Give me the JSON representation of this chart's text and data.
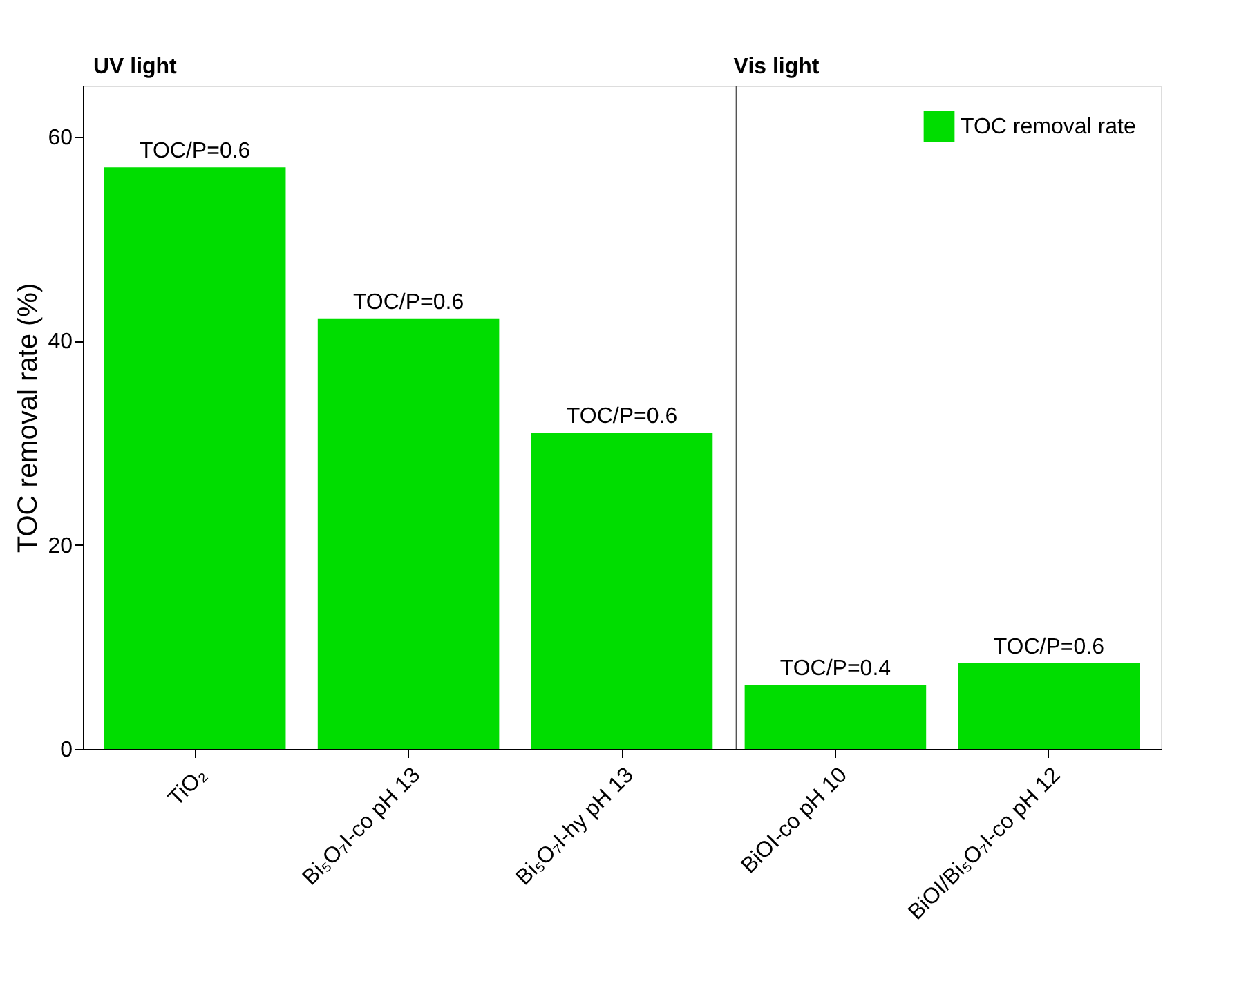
{
  "chart_data": {
    "type": "bar",
    "ylabel": "TOC removal rate (%)",
    "categories": [
      "TiO₂",
      "Bi₅O₇I-co pH 13",
      "Bi₅O₇I-hy pH 13",
      "BiOI-co pH 10",
      "BiOI/Bi₅O₇I-co pH 12"
    ],
    "series": [
      {
        "name": "TOC removal rate",
        "color": "#00dd00",
        "values": [
          57,
          42.2,
          31,
          6.3,
          8.4
        ]
      }
    ],
    "ylim": [
      0,
      65
    ],
    "yticks": [
      0,
      20,
      40,
      60
    ],
    "grid": false,
    "legend": "top right",
    "ref_lines": [
      {
        "axis": "x",
        "value": "BiOI-co pH 10",
        "color": "#555555"
      }
    ],
    "annotations": [
      "UV light",
      "Vis light",
      {
        "text": "TOC/P=0.6",
        "x": "TiO₂",
        "y": 57
      },
      {
        "text": "TOC/P=0.6",
        "x": "Bi₅O₇I-co pH 13",
        "y": 42.2
      },
      {
        "text": "TOC/P=0.6",
        "x": "Bi₅O₇I-hy pH 13",
        "y": 31
      },
      {
        "text": "TOC/P=0.4",
        "x": "BiOI-co pH 10",
        "y": 6.3
      },
      {
        "text": "TOC/P=0.6",
        "x": "BiOI/Bi₅O₇I-co pH 12",
        "y": 8.4
      }
    ]
  }
}
